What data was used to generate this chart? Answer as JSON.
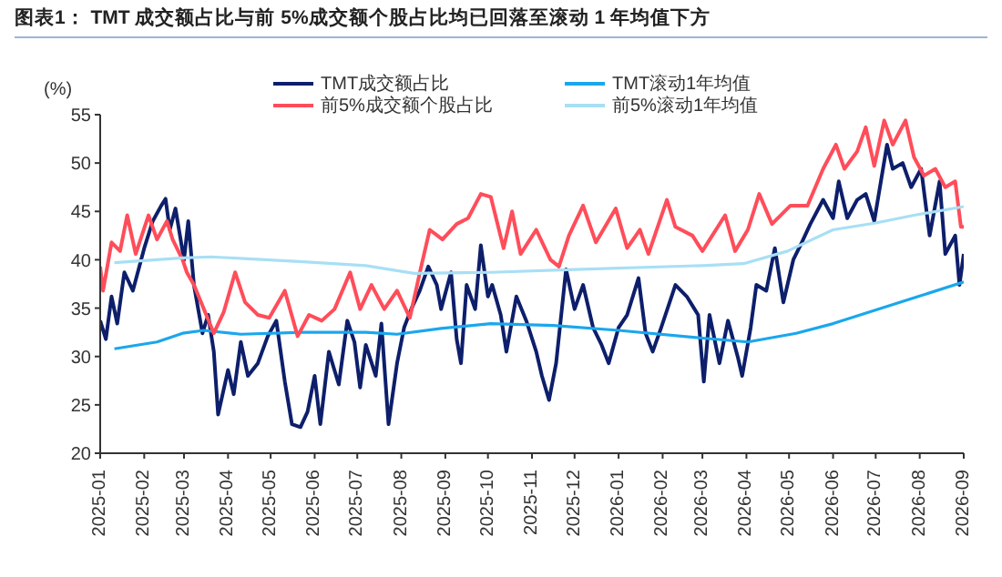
{
  "chart_data": {
    "type": "line",
    "title": "图表1：  TMT 成交额占比与前 5%成交额个股占比均已回落至滚动 1 年均值下方",
    "ylabel": "(%)",
    "xlim": [
      "2025-01-01",
      "2026-09-01"
    ],
    "xticks": [
      {
        "value": "2025-01",
        "label": "2025-01"
      },
      {
        "value": "2025-02",
        "label": "2025-02"
      },
      {
        "value": "2025-03",
        "label": "2025-03"
      },
      {
        "value": "2025-04",
        "label": "2025-04"
      },
      {
        "value": "2025-05",
        "label": "2025-05"
      },
      {
        "value": "2025-06",
        "label": "2025-06"
      },
      {
        "value": "2025-07",
        "label": "2025-07"
      },
      {
        "value": "2025-08",
        "label": "2025-08"
      },
      {
        "value": "2025-09",
        "label": "2025-09"
      },
      {
        "value": "2025-10",
        "label": "2025-10"
      },
      {
        "value": "2025-11",
        "label": "2025-11"
      },
      {
        "value": "2025-12",
        "label": "2025-12"
      },
      {
        "value": "2026-01",
        "label": "2026-01"
      },
      {
        "value": "2026-02",
        "label": "2026-02"
      },
      {
        "value": "2026-03",
        "label": "2026-03"
      },
      {
        "value": "2026-04",
        "label": "2026-04"
      },
      {
        "value": "2026-05",
        "label": "2026-05"
      },
      {
        "value": "2026-06",
        "label": "2026-06"
      },
      {
        "value": "2026-07",
        "label": "2026-07"
      },
      {
        "value": "2026-08",
        "label": "2026-08"
      },
      {
        "value": "2026-09",
        "label": "2026-09"
      }
    ],
    "ylim": [
      20,
      55
    ],
    "yticks": [
      20,
      25,
      30,
      35,
      40,
      45,
      50,
      55
    ],
    "legend": "top",
    "marker": "none",
    "line_style": "solid",
    "series": [
      {
        "name": "TMT成交额占比",
        "color": "#0d1f6b",
        "x": [
          "2025-01-01",
          "2025-01-05",
          "2025-01-09",
          "2025-01-13",
          "2025-01-18",
          "2025-01-24",
          "2025-02-01",
          "2025-02-07",
          "2025-02-13",
          "2025-02-16",
          "2025-02-19",
          "2025-02-23",
          "2025-03-01",
          "2025-03-04",
          "2025-03-08",
          "2025-03-14",
          "2025-03-18",
          "2025-03-22",
          "2025-03-25",
          "2025-04-01",
          "2025-04-05",
          "2025-04-10",
          "2025-04-15",
          "2025-04-22",
          "2025-04-29",
          "2025-05-05",
          "2025-05-11",
          "2025-05-16",
          "2025-05-22",
          "2025-05-27",
          "2025-06-01",
          "2025-06-05",
          "2025-06-11",
          "2025-06-18",
          "2025-06-24",
          "2025-06-29",
          "2025-07-03",
          "2025-07-07",
          "2025-07-14",
          "2025-07-18",
          "2025-07-23",
          "2025-07-29",
          "2025-08-03",
          "2025-08-08",
          "2025-08-14",
          "2025-08-20",
          "2025-08-26",
          "2025-08-29",
          "2025-09-05",
          "2025-09-09",
          "2025-09-12",
          "2025-09-16",
          "2025-09-22",
          "2025-09-26",
          "2025-10-01",
          "2025-10-04",
          "2025-10-10",
          "2025-10-14",
          "2025-10-21",
          "2025-10-28",
          "2025-11-04",
          "2025-11-08",
          "2025-11-13",
          "2025-11-18",
          "2025-11-25",
          "2025-12-01",
          "2025-12-07",
          "2025-12-14",
          "2025-12-20",
          "2025-12-25",
          "2026-01-01",
          "2026-01-07",
          "2026-01-15",
          "2026-01-20",
          "2026-01-25",
          "2026-01-31",
          "2026-02-10",
          "2026-02-18",
          "2026-02-26",
          "2026-03-02",
          "2026-03-06",
          "2026-03-13",
          "2026-03-19",
          "2026-03-26",
          "2026-03-29",
          "2026-04-04",
          "2026-04-08",
          "2026-04-15",
          "2026-04-21",
          "2026-04-27",
          "2026-05-04",
          "2026-05-10",
          "2026-05-16",
          "2026-05-25",
          "2026-06-01",
          "2026-06-05",
          "2026-06-11",
          "2026-06-18",
          "2026-06-24",
          "2026-06-30",
          "2026-07-09",
          "2026-07-13",
          "2026-07-20",
          "2026-07-26",
          "2026-08-02",
          "2026-08-08",
          "2026-08-15",
          "2026-08-19",
          "2026-08-26",
          "2026-08-29",
          "2026-09-01"
        ],
        "values": [
          33.7,
          31.8,
          36.2,
          33.4,
          38.7,
          36.8,
          41.2,
          44,
          45.6,
          46.3,
          43.1,
          45.3,
          40,
          44,
          37.4,
          32.4,
          34.3,
          30.5,
          24,
          28.6,
          26.1,
          31.5,
          28,
          29.3,
          32.1,
          33.7,
          27.4,
          23,
          22.7,
          24.3,
          28,
          23,
          30.5,
          27.1,
          33.7,
          31.5,
          26.8,
          31.2,
          28,
          33.4,
          23,
          29.3,
          33,
          34.9,
          36.8,
          39.3,
          37.4,
          34.9,
          38.7,
          31.8,
          29.3,
          37.4,
          34.9,
          41.5,
          36.2,
          37.4,
          34.3,
          30.5,
          36.2,
          33.7,
          30.5,
          28,
          25.5,
          29.3,
          39,
          34.9,
          37.4,
          33,
          31.2,
          29.3,
          33,
          34.3,
          38.1,
          32.4,
          30.5,
          33,
          37.4,
          36.2,
          34.3,
          27.4,
          34.3,
          29.3,
          33.7,
          29.9,
          28,
          33,
          37.4,
          36.8,
          41.2,
          35.6,
          40,
          41.8,
          43.7,
          46.2,
          44.3,
          48.1,
          44.3,
          46.2,
          46.8,
          44,
          51.9,
          49.4,
          50,
          47.5,
          49.4,
          42.5,
          48.1,
          40.6,
          42.5,
          37.4,
          40.6
        ]
      },
      {
        "name": "TMT滚动1年均值",
        "color": "#1aa7ec",
        "x": [
          "2025-01-11",
          "2025-02-10",
          "2025-02-28",
          "2025-03-15",
          "2025-04-10",
          "2025-05-24",
          "2025-07-07",
          "2025-07-29",
          "2025-08-29",
          "2025-10-03",
          "2025-11-16",
          "2026-01-01",
          "2026-03-01",
          "2026-04-02",
          "2026-05-06",
          "2026-06-01",
          "2026-07-31",
          "2026-09-01"
        ],
        "values": [
          30.8,
          31.5,
          32.4,
          32.7,
          32.3,
          32.5,
          32.5,
          32.3,
          32.9,
          33.4,
          33.2,
          32.7,
          31.9,
          31.5,
          32.4,
          33.4,
          36.2,
          37.7
        ]
      },
      {
        "name": "前5%成交额个股占比",
        "color": "#ff4d5a",
        "x": [
          "2025-01-01",
          "2025-01-03",
          "2025-01-09",
          "2025-01-15",
          "2025-01-20",
          "2025-01-26",
          "2025-02-04",
          "2025-02-10",
          "2025-02-17",
          "2025-02-21",
          "2025-02-28",
          "2025-03-03",
          "2025-03-08",
          "2025-03-15",
          "2025-03-22",
          "2025-03-29",
          "2025-04-06",
          "2025-04-13",
          "2025-04-22",
          "2025-04-30",
          "2025-05-11",
          "2025-05-20",
          "2025-05-28",
          "2025-06-06",
          "2025-06-15",
          "2025-06-26",
          "2025-07-03",
          "2025-07-11",
          "2025-07-20",
          "2025-07-29",
          "2025-08-07",
          "2025-08-15",
          "2025-08-21",
          "2025-08-30",
          "2025-09-09",
          "2025-09-17",
          "2025-09-26",
          "2025-10-03",
          "2025-10-12",
          "2025-10-18",
          "2025-10-24",
          "2025-11-04",
          "2025-11-14",
          "2025-11-20",
          "2025-11-27",
          "2025-12-07",
          "2025-12-16",
          "2025-12-30",
          "2026-01-07",
          "2026-01-16",
          "2026-01-22",
          "2026-02-04",
          "2026-02-10",
          "2026-02-22",
          "2026-03-01",
          "2026-03-17",
          "2026-03-24",
          "2026-04-02",
          "2026-04-10",
          "2026-04-19",
          "2026-05-02",
          "2026-05-14",
          "2026-05-25",
          "2026-06-03",
          "2026-06-09",
          "2026-06-18",
          "2026-06-24",
          "2026-06-30",
          "2026-07-07",
          "2026-07-13",
          "2026-07-22",
          "2026-07-28",
          "2026-08-04",
          "2026-08-12",
          "2026-08-19",
          "2026-08-26",
          "2026-08-30",
          "2026-09-01"
        ],
        "values": [
          39.3,
          36.8,
          41.8,
          40.9,
          44.6,
          40.6,
          44.6,
          42.1,
          44,
          42.1,
          40,
          38.7,
          37.4,
          34.9,
          32.4,
          34.6,
          38.7,
          35.6,
          34.3,
          34,
          36.8,
          32.1,
          34.3,
          33.7,
          34.9,
          38.7,
          34.9,
          37.4,
          34.9,
          36.8,
          34,
          39.3,
          43.1,
          42.1,
          43.7,
          44.3,
          46.8,
          46.5,
          41.2,
          45,
          40.6,
          43.1,
          40,
          39.3,
          42.5,
          45.6,
          41.8,
          45.3,
          41.2,
          43.1,
          40.6,
          46.2,
          43.4,
          42.5,
          40.9,
          44.6,
          40.9,
          43.1,
          46.8,
          43.7,
          45.6,
          45.6,
          49.4,
          51.9,
          49.4,
          51.2,
          53.7,
          49.7,
          54.4,
          51.9,
          54.4,
          50.6,
          48.7,
          49.4,
          47.5,
          48.1,
          43.4,
          43.4
        ]
      },
      {
        "name": "前5%滚动1年均值",
        "color": "#a8dff5",
        "x": [
          "2025-01-11",
          "2025-02-28",
          "2025-03-20",
          "2025-05-24",
          "2025-07-07",
          "2025-08-10",
          "2025-10-03",
          "2025-12-01",
          "2026-03-01",
          "2026-03-30",
          "2026-04-30",
          "2026-06-01",
          "2026-07-01",
          "2026-07-28",
          "2026-09-01"
        ],
        "values": [
          39.7,
          40.2,
          40.3,
          39.8,
          39.4,
          38.6,
          38.7,
          39,
          39.4,
          39.6,
          40.9,
          43.1,
          43.8,
          44.6,
          45.5
        ]
      }
    ]
  }
}
